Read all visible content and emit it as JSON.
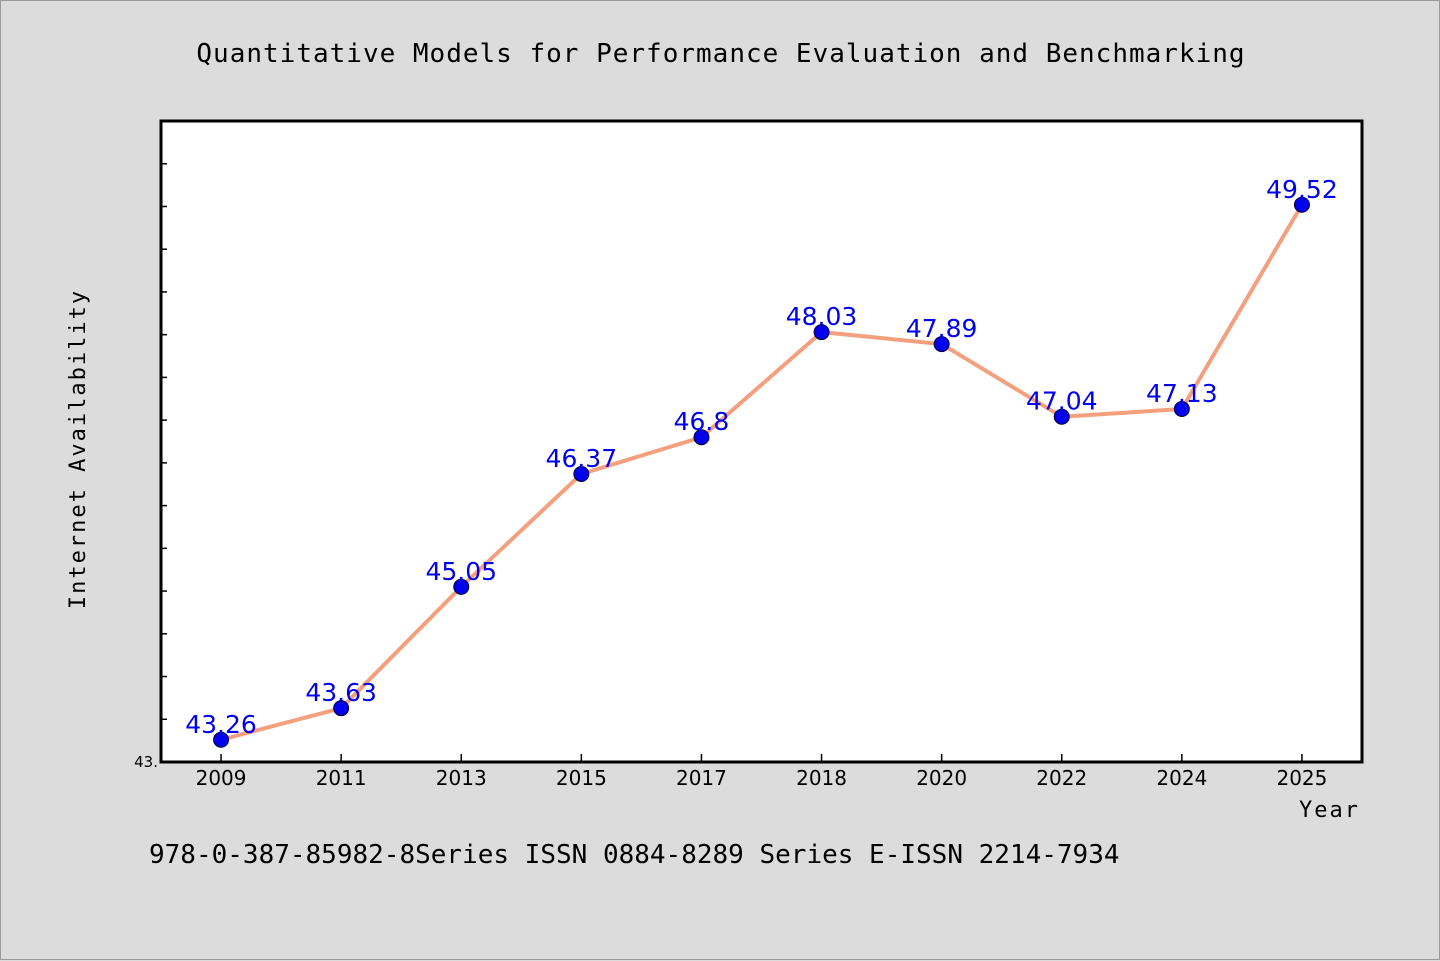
{
  "colors": {
    "background": "#dcdcdc",
    "plot_background": "#ffffff",
    "line": "#f4a07e",
    "marker": "#0000ee",
    "label": "#0000ee"
  },
  "footer_text": "978-0-387-85982-8Series ISSN 0884-8289 Series E-ISSN 2214-7934",
  "chart_data": {
    "type": "line",
    "title": "Quantitative Models for Performance Evaluation and Benchmarking",
    "xlabel": "Year",
    "ylabel": "Internet Availability",
    "categories": [
      "2009",
      "2011",
      "2013",
      "2015",
      "2017",
      "2018",
      "2020",
      "2022",
      "2024",
      "2025"
    ],
    "series": [
      {
        "values": [
          43.26,
          43.63,
          45.05,
          46.37,
          46.8,
          48.03,
          47.89,
          47.04,
          47.13,
          49.52
        ]
      }
    ],
    "data_labels": [
      "43.26",
      "43.63",
      "45.05",
      "46.37",
      "46.8",
      "48.03",
      "47.89",
      "47.04",
      "47.13",
      "49.52"
    ],
    "y_tick_label": "43.",
    "ylim": [
      43.0,
      50.5
    ],
    "y_minor_tick_step": 0.5,
    "grid": false,
    "legend": "none"
  }
}
